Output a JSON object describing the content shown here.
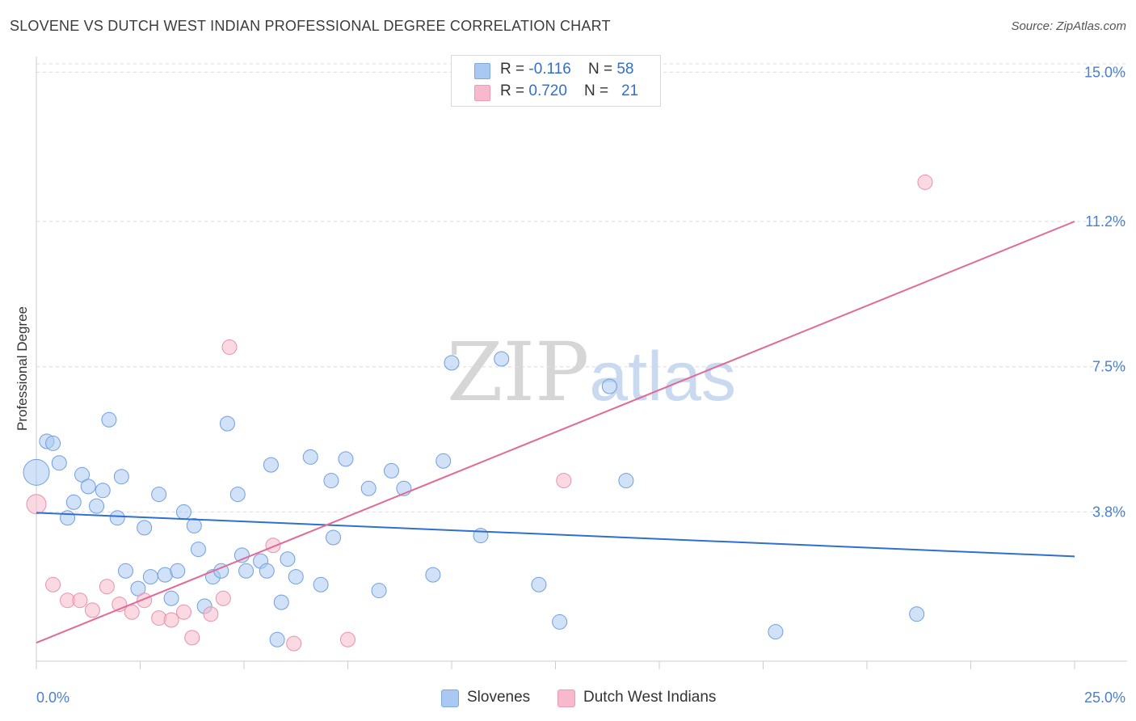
{
  "header": {
    "title": "SLOVENE VS DUTCH WEST INDIAN PROFESSIONAL DEGREE CORRELATION CHART",
    "source": "Source: ZipAtlas.com"
  },
  "watermark": {
    "zip": "ZIP",
    "atlas": "atlas"
  },
  "legend": {
    "rows": [
      {
        "r_label": "R = ",
        "r_value": "-0.116",
        "n_label": "N = ",
        "n_value": "58",
        "color": "#a9c8f2"
      },
      {
        "r_label": "R = ",
        "r_value": "0.720",
        "n_label": "N = ",
        "n_value": "21",
        "color": "#f7b9cb"
      }
    ]
  },
  "bottom_legend": [
    {
      "label": "Slovenes",
      "color": "#a9c8f2"
    },
    {
      "label": "Dutch West Indians",
      "color": "#f7b9cb"
    }
  ],
  "chart_data": {
    "type": "scatter",
    "title": "SLOVENE VS DUTCH WEST INDIAN PROFESSIONAL DEGREE CORRELATION CHART",
    "xlabel": "",
    "ylabel": "Professional Degree",
    "xlim": [
      0,
      25
    ],
    "ylim": [
      0,
      15.4
    ],
    "x_tick_labels": [
      "0.0%",
      "25.0%"
    ],
    "y_ticks": [
      {
        "value": 3.8,
        "label": "3.8%"
      },
      {
        "value": 7.5,
        "label": "7.5%"
      },
      {
        "value": 11.2,
        "label": "11.2%"
      },
      {
        "value": 15.0,
        "label": "15.0%"
      }
    ],
    "series": [
      {
        "name": "Slovenes",
        "color": "#a9c8f2",
        "stroke": "#6f9fdf",
        "trend_color": "#2f6fd0",
        "trend": {
          "x": [
            0,
            25
          ],
          "y": [
            3.78,
            2.67
          ]
        },
        "points": [
          {
            "x": 0.0,
            "y": 4.81,
            "size": "large"
          },
          {
            "x": 0.25,
            "y": 5.6
          },
          {
            "x": 0.4,
            "y": 5.55
          },
          {
            "x": 0.55,
            "y": 5.05
          },
          {
            "x": 0.75,
            "y": 3.65
          },
          {
            "x": 0.9,
            "y": 4.05
          },
          {
            "x": 1.1,
            "y": 4.75
          },
          {
            "x": 1.25,
            "y": 4.45
          },
          {
            "x": 1.45,
            "y": 3.95
          },
          {
            "x": 1.6,
            "y": 4.35
          },
          {
            "x": 1.75,
            "y": 6.15
          },
          {
            "x": 1.95,
            "y": 3.65
          },
          {
            "x": 2.05,
            "y": 4.7
          },
          {
            "x": 2.15,
            "y": 2.3
          },
          {
            "x": 2.45,
            "y": 1.85
          },
          {
            "x": 2.6,
            "y": 3.4
          },
          {
            "x": 2.75,
            "y": 2.15
          },
          {
            "x": 2.95,
            "y": 4.25
          },
          {
            "x": 3.1,
            "y": 2.2
          },
          {
            "x": 3.25,
            "y": 1.6
          },
          {
            "x": 3.4,
            "y": 2.3
          },
          {
            "x": 3.55,
            "y": 3.8
          },
          {
            "x": 3.8,
            "y": 3.45
          },
          {
            "x": 3.9,
            "y": 2.85
          },
          {
            "x": 4.05,
            "y": 1.4
          },
          {
            "x": 4.25,
            "y": 2.15
          },
          {
            "x": 4.45,
            "y": 2.3
          },
          {
            "x": 4.6,
            "y": 6.05
          },
          {
            "x": 4.85,
            "y": 4.25
          },
          {
            "x": 4.95,
            "y": 2.7
          },
          {
            "x": 5.05,
            "y": 2.3
          },
          {
            "x": 5.4,
            "y": 2.55
          },
          {
            "x": 5.55,
            "y": 2.3
          },
          {
            "x": 5.65,
            "y": 5.0
          },
          {
            "x": 5.8,
            "y": 0.55
          },
          {
            "x": 5.9,
            "y": 1.5
          },
          {
            "x": 6.05,
            "y": 2.6
          },
          {
            "x": 6.25,
            "y": 2.15
          },
          {
            "x": 6.6,
            "y": 5.2
          },
          {
            "x": 6.85,
            "y": 1.95
          },
          {
            "x": 7.1,
            "y": 4.6
          },
          {
            "x": 7.15,
            "y": 3.15
          },
          {
            "x": 7.45,
            "y": 5.15
          },
          {
            "x": 8.0,
            "y": 4.4
          },
          {
            "x": 8.25,
            "y": 1.8
          },
          {
            "x": 8.55,
            "y": 4.85
          },
          {
            "x": 8.85,
            "y": 4.4
          },
          {
            "x": 9.55,
            "y": 2.2
          },
          {
            "x": 9.8,
            "y": 5.1
          },
          {
            "x": 10.0,
            "y": 7.6
          },
          {
            "x": 10.7,
            "y": 3.2
          },
          {
            "x": 11.2,
            "y": 7.7
          },
          {
            "x": 12.1,
            "y": 1.95
          },
          {
            "x": 12.6,
            "y": 1.0
          },
          {
            "x": 13.8,
            "y": 7.0
          },
          {
            "x": 14.2,
            "y": 4.6
          },
          {
            "x": 17.8,
            "y": 0.75
          },
          {
            "x": 21.2,
            "y": 1.2
          }
        ]
      },
      {
        "name": "Dutch West Indians",
        "color": "#f7b9cb",
        "stroke": "#e891ab",
        "trend_color": "#e26a96",
        "trend": {
          "x": [
            0,
            25
          ],
          "y": [
            0.47,
            11.2
          ]
        },
        "points": [
          {
            "x": 0.0,
            "y": 4.0,
            "size": "medium"
          },
          {
            "x": 0.4,
            "y": 1.95
          },
          {
            "x": 0.75,
            "y": 1.55
          },
          {
            "x": 1.05,
            "y": 1.55
          },
          {
            "x": 1.35,
            "y": 1.3
          },
          {
            "x": 1.7,
            "y": 1.9
          },
          {
            "x": 2.0,
            "y": 1.45
          },
          {
            "x": 2.3,
            "y": 1.25
          },
          {
            "x": 2.6,
            "y": 1.55
          },
          {
            "x": 2.95,
            "y": 1.1
          },
          {
            "x": 3.25,
            "y": 1.05
          },
          {
            "x": 3.55,
            "y": 1.25
          },
          {
            "x": 3.75,
            "y": 0.6
          },
          {
            "x": 4.2,
            "y": 1.2
          },
          {
            "x": 4.5,
            "y": 1.6
          },
          {
            "x": 4.65,
            "y": 8.0
          },
          {
            "x": 5.7,
            "y": 2.95
          },
          {
            "x": 6.2,
            "y": 0.45
          },
          {
            "x": 7.5,
            "y": 0.55
          },
          {
            "x": 12.7,
            "y": 4.6
          },
          {
            "x": 21.4,
            "y": 12.2
          }
        ]
      }
    ]
  }
}
